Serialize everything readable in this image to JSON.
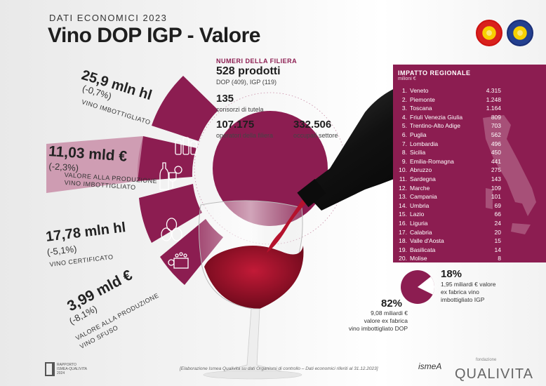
{
  "header": {
    "supertitle": "DATI ECONOMICI 2023",
    "title": "Vino DOP IGP - Valore"
  },
  "seals": {
    "dop_icon": "dop-seal-icon",
    "igp_icon": "igp-seal-icon"
  },
  "segments": [
    {
      "value": "25,9 mln hl",
      "change": "(-0,7%)",
      "label": "VINO IMBOTTIGLIATO",
      "icon": "bottles-icon"
    },
    {
      "value": "11,03 mld €",
      "change": "(-2,3%)",
      "label_line1": "VALORE ALLA PRODUZIONE",
      "label_line2": "VINO IMBOTTIGLIATO",
      "icon": "bottle-euro-icon"
    },
    {
      "value": "17,78 mln hl",
      "change": "(-5,1%)",
      "label": "VINO CERTIFICATO",
      "icon": "barrels-icon"
    },
    {
      "value": "3,99 mld €",
      "change": "(-8,1%)",
      "label_line1": "VALORE ALLA PRODUZIONE",
      "label_line2": "VINO SFUSO",
      "icon": "crate-euro-icon"
    }
  ],
  "filiera": {
    "title": "NUMERI DELLA FILIERA",
    "prodotti": "528 prodotti",
    "prodotti_sub": "DOP (409), IGP (119)",
    "consorzi": "135",
    "consorzi_sub": "consorzi di tutela",
    "operatori": "107.175",
    "operatori_sub": "operatori della filiera",
    "occupati": "332.506",
    "occupati_sub": "occupati settore"
  },
  "regional": {
    "title": "IMPATTO REGIONALE",
    "unit": "milioni €",
    "items": [
      {
        "rank": "1.",
        "name": "Veneto",
        "value": "4.315"
      },
      {
        "rank": "2.",
        "name": "Piemonte",
        "value": "1.248"
      },
      {
        "rank": "3.",
        "name": "Toscana",
        "value": "1.164"
      },
      {
        "rank": "4.",
        "name": "Friuli Venezia Giulia",
        "value": "809"
      },
      {
        "rank": "5.",
        "name": "Trentino-Alto Adige",
        "value": "703"
      },
      {
        "rank": "6.",
        "name": "Puglia",
        "value": "562"
      },
      {
        "rank": "7.",
        "name": "Lombardia",
        "value": "496"
      },
      {
        "rank": "8.",
        "name": "Sicilia",
        "value": "450"
      },
      {
        "rank": "9.",
        "name": "Emilia-Romagna",
        "value": "441"
      },
      {
        "rank": "10.",
        "name": "Abruzzo",
        "value": "275"
      },
      {
        "rank": "11.",
        "name": "Sardegna",
        "value": "143"
      },
      {
        "rank": "12.",
        "name": "Marche",
        "value": "109"
      },
      {
        "rank": "13.",
        "name": "Campania",
        "value": "101"
      },
      {
        "rank": "14.",
        "name": "Umbria",
        "value": "69"
      },
      {
        "rank": "15.",
        "name": "Lazio",
        "value": "66"
      },
      {
        "rank": "16.",
        "name": "Liguria",
        "value": "24"
      },
      {
        "rank": "17.",
        "name": "Calabria",
        "value": "20"
      },
      {
        "rank": "18.",
        "name": "Valle d'Aosta",
        "value": "15"
      },
      {
        "rank": "19.",
        "name": "Basilicata",
        "value": "14"
      },
      {
        "rank": "20.",
        "name": "Molise",
        "value": "8"
      }
    ]
  },
  "pie": {
    "slices": [
      {
        "percent": 82,
        "pct_label": "82%",
        "desc_line1": "9,08 miliardi €",
        "desc_line2": "valore ex fabrica",
        "desc_line3": "vino imbottigliato DOP",
        "color": "#8c1d51"
      },
      {
        "percent": 18,
        "pct_label": "18%",
        "desc_line1": "1,95 miliardi € valore",
        "desc_line2": "ex fabrica vino",
        "desc_line3": "imbottigliato IGP",
        "color": "#ffffff"
      }
    ]
  },
  "footer": {
    "note": "[Elaborazione Ismea Qualivita su dati Organismi di controllo – Dati economici riferiti al 31.12.2023]",
    "rapporto_line1": "RAPPORTO",
    "rapporto_line2": "ISMEA-QUALIVITA",
    "rapporto_line3": "2024",
    "ismea": "ismeA",
    "fondazione": "fondazione",
    "qualivita": "QUALIVITA"
  },
  "colors": {
    "accent": "#8c1d51",
    "accent_light": "#c98ea8",
    "bottle": "#141414",
    "wine": "#a3112b"
  }
}
